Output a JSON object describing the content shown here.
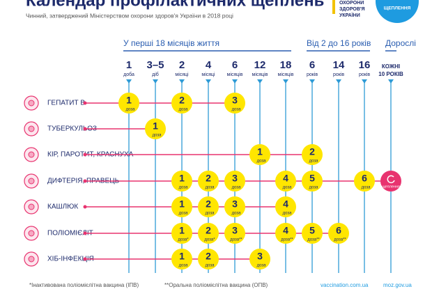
{
  "header": {
    "title": "Календар профілактичних щеплень",
    "subtitle": "Чинний, затверджений Міністерством охорони здоров'я України в 2018 році",
    "ministry": [
      "ОХОРОНИ",
      "ЗДОРОВ'Я",
      "УКРАЇНИ"
    ],
    "badge": "ЩЕПЛЕННЯ"
  },
  "groups": [
    {
      "label": "У перші 18 місяців життя",
      "columns": 7
    },
    {
      "label": "Від 2 до 16 років",
      "columns": 3
    },
    {
      "label": "Дорослі",
      "columns": 1
    }
  ],
  "columns": [
    {
      "number": "1",
      "unit": "доба"
    },
    {
      "number": "3–5",
      "unit": "діб"
    },
    {
      "number": "2",
      "unit": "місяці"
    },
    {
      "number": "4",
      "unit": "місяці"
    },
    {
      "number": "6",
      "unit": "місяців"
    },
    {
      "number": "12",
      "unit": "місяців"
    },
    {
      "number": "18",
      "unit": "місяців"
    },
    {
      "number": "6",
      "unit": "років"
    },
    {
      "number": "14",
      "unit": "років"
    },
    {
      "number": "16",
      "unit": "років"
    },
    {
      "number": "КОЖНІ",
      "unit": "10 РОКІВ"
    }
  ],
  "rows": [
    {
      "label": "ГЕПАТИТ В",
      "doses": [
        {
          "number": "1",
          "label": "доза"
        },
        null,
        {
          "number": "2",
          "label": "доза"
        },
        null,
        {
          "number": "3",
          "label": "доза"
        },
        null,
        null,
        null,
        null,
        null,
        null
      ]
    },
    {
      "label": "ТУБЕРКУЛЬОЗ",
      "doses": [
        null,
        {
          "number": "1",
          "label": "доза"
        },
        null,
        null,
        null,
        null,
        null,
        null,
        null,
        null,
        null
      ]
    },
    {
      "label": "КІР, ПАРОТИТ, КРАСНУХА",
      "doses": [
        null,
        null,
        null,
        null,
        null,
        {
          "number": "1",
          "label": "доза"
        },
        null,
        {
          "number": "2",
          "label": "доза"
        },
        null,
        null,
        null
      ]
    },
    {
      "label": "ДИФТЕРІЯ, ПРАВЕЦЬ",
      "doses": [
        null,
        null,
        {
          "number": "1",
          "label": "доза"
        },
        {
          "number": "2",
          "label": "доза"
        },
        {
          "number": "3",
          "label": "доза"
        },
        null,
        {
          "number": "4",
          "label": "доза"
        },
        {
          "number": "5",
          "label": "доза"
        },
        null,
        {
          "number": "6",
          "label": "доза"
        },
        {
          "label": "щеплення"
        }
      ]
    },
    {
      "label": "КАШЛЮК",
      "doses": [
        null,
        null,
        {
          "number": "1",
          "label": "доза"
        },
        {
          "number": "2",
          "label": "доза"
        },
        {
          "number": "3",
          "label": "доза"
        },
        null,
        {
          "number": "4",
          "label": "доза"
        },
        null,
        null,
        null,
        null
      ]
    },
    {
      "label": "ПОЛІОМІЄЛІТ",
      "doses": [
        null,
        null,
        {
          "number": "1",
          "label": "доза*"
        },
        {
          "number": "2",
          "label": "доза*"
        },
        {
          "number": "3",
          "label": "доза**"
        },
        null,
        {
          "number": "4",
          "label": "доза**"
        },
        {
          "number": "5",
          "label": "доза**"
        },
        {
          "number": "6",
          "label": "доза**"
        },
        null,
        null
      ]
    },
    {
      "label": "ХІБ-ІНФЕКЦІЯ",
      "doses": [
        null,
        null,
        {
          "number": "1",
          "label": "доза"
        },
        {
          "number": "2",
          "label": "доза"
        },
        null,
        {
          "number": "3",
          "label": "доза"
        },
        null,
        null,
        null,
        null,
        null
      ]
    }
  ],
  "footer": {
    "notes": [
      "*Інактивована поліомієлітна вакцина (ІПВ)",
      "**Оральна поліомієлітна вакцина (ОПВ)"
    ],
    "links": [
      "vaccination.com.ua",
      "moz.gov.ua"
    ]
  }
}
